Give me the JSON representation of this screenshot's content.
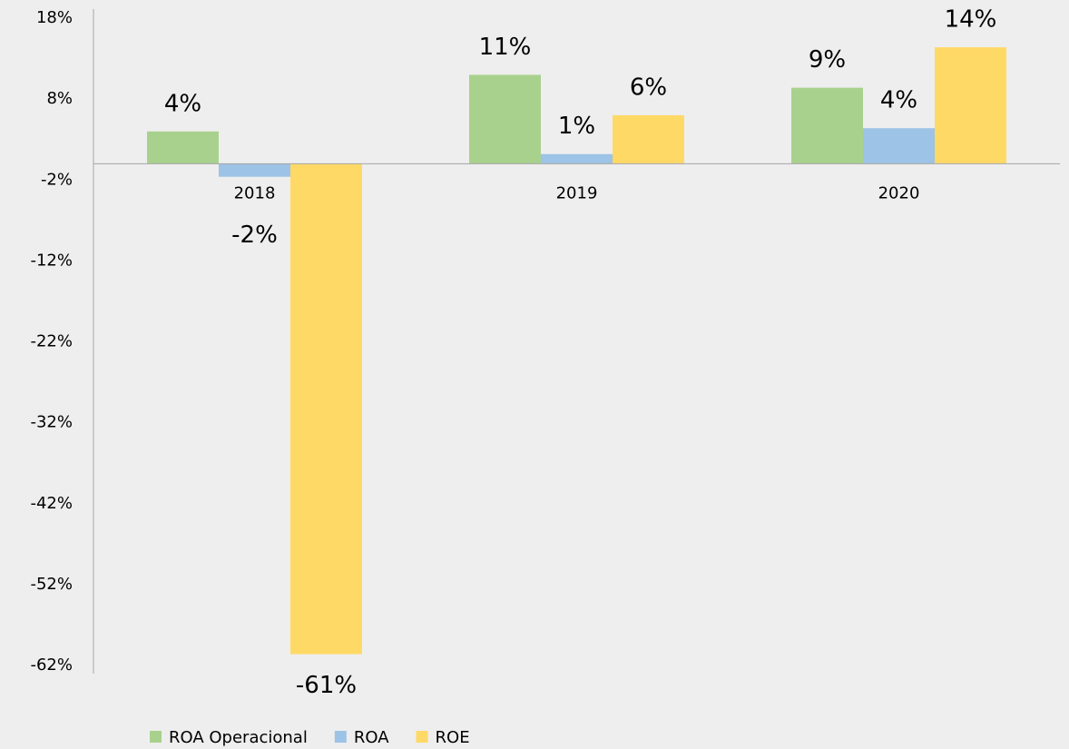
{
  "chart_data": {
    "type": "bar",
    "categories": [
      "2018",
      "2019",
      "2020"
    ],
    "series": [
      {
        "name": "ROA Operacional",
        "color": "#a9d18e",
        "values": [
          4,
          11,
          9.4
        ],
        "value_labels": [
          "4%",
          "11%",
          "9%"
        ]
      },
      {
        "name": "ROA",
        "color": "#9dc3e6",
        "values": [
          -1.6,
          1.2,
          4.4
        ],
        "value_labels": [
          "-2%",
          "1%",
          "4%"
        ]
      },
      {
        "name": "ROE",
        "color": "#ffd966",
        "values": [
          -60.6,
          6,
          14.4
        ],
        "value_labels": [
          "-61%",
          "6%",
          "14%"
        ]
      }
    ],
    "ylim": [
      -62,
      18
    ],
    "yticks": [
      {
        "value": 18,
        "label": "18%"
      },
      {
        "value": 8,
        "label": "8%"
      },
      {
        "value": -2,
        "label": "-2%"
      },
      {
        "value": -12,
        "label": "-12%"
      },
      {
        "value": -22,
        "label": "-22%"
      },
      {
        "value": -32,
        "label": "-32%"
      },
      {
        "value": -42,
        "label": "-42%"
      },
      {
        "value": -52,
        "label": "-52%"
      },
      {
        "value": -62,
        "label": "-62%"
      }
    ],
    "grid": false,
    "legend": "bottom"
  }
}
